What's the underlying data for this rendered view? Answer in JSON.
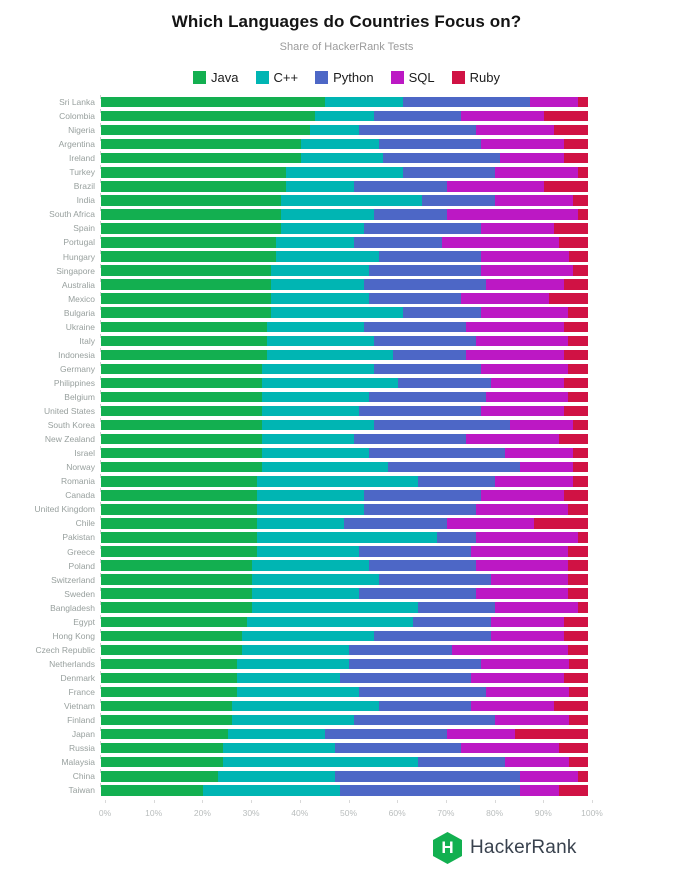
{
  "header": {
    "title": "Which Languages do Countries Focus on?",
    "subtitle": "Share of HackerRank Tests"
  },
  "chart_data": {
    "type": "bar",
    "stacked": true,
    "orientation": "horizontal",
    "title": "Which Languages do Countries Focus on?",
    "subtitle": "Share of HackerRank Tests",
    "xlabel": "",
    "ylabel": "",
    "xlim": [
      0,
      100
    ],
    "grid": false,
    "legend_position": "top",
    "x_ticks": [
      "0%",
      "10%",
      "20%",
      "30%",
      "40%",
      "50%",
      "60%",
      "70%",
      "80%",
      "90%",
      "100%"
    ],
    "unit": "percent",
    "colors": {
      "Java": "#13AF50",
      "C++": "#00B5B3",
      "Python": "#4D67C6",
      "SQL": "#BC18C4",
      "Ruby": "#D01244"
    },
    "categories": [
      "Sri Lanka",
      "Colombia",
      "Nigeria",
      "Argentina",
      "Ireland",
      "Turkey",
      "Brazil",
      "India",
      "South Africa",
      "Spain",
      "Portugal",
      "Hungary",
      "Singapore",
      "Australia",
      "Mexico",
      "Bulgaria",
      "Ukraine",
      "Italy",
      "Indonesia",
      "Germany",
      "Philippines",
      "Belgium",
      "United States",
      "South Korea",
      "New Zealand",
      "Israel",
      "Norway",
      "Romania",
      "Canada",
      "United Kingdom",
      "Chile",
      "Pakistan",
      "Greece",
      "Poland",
      "Switzerland",
      "Sweden",
      "Bangladesh",
      "Egypt",
      "Hong Kong",
      "Czech Republic",
      "Netherlands",
      "Denmark",
      "France",
      "Vietnam",
      "Finland",
      "Japan",
      "Russia",
      "Malaysia",
      "China",
      "Taiwan"
    ],
    "series": [
      {
        "name": "Java",
        "key": "java",
        "values": [
          46,
          44,
          43,
          41,
          41,
          38,
          38,
          37,
          37,
          37,
          36,
          36,
          35,
          35,
          35,
          35,
          34,
          34,
          34,
          33,
          33,
          33,
          33,
          33,
          33,
          33,
          33,
          32,
          32,
          32,
          32,
          32,
          32,
          31,
          31,
          31,
          31,
          30,
          29,
          29,
          28,
          28,
          28,
          27,
          27,
          26,
          25,
          25,
          24,
          21
        ]
      },
      {
        "name": "C++",
        "key": "cpp",
        "values": [
          16,
          12,
          10,
          16,
          17,
          24,
          14,
          29,
          19,
          17,
          16,
          21,
          20,
          19,
          20,
          27,
          20,
          22,
          26,
          23,
          28,
          22,
          20,
          23,
          19,
          22,
          26,
          33,
          22,
          22,
          18,
          37,
          21,
          24,
          26,
          22,
          34,
          34,
          27,
          22,
          23,
          21,
          25,
          30,
          25,
          20,
          23,
          40,
          24,
          28
        ]
      },
      {
        "name": "Python",
        "key": "python",
        "values": [
          26,
          18,
          24,
          21,
          24,
          19,
          19,
          15,
          15,
          24,
          18,
          21,
          23,
          25,
          19,
          16,
          21,
          21,
          15,
          22,
          19,
          24,
          25,
          28,
          23,
          28,
          27,
          16,
          24,
          23,
          21,
          8,
          23,
          22,
          23,
          24,
          16,
          16,
          24,
          21,
          27,
          27,
          26,
          19,
          29,
          25,
          26,
          18,
          38,
          37
        ]
      },
      {
        "name": "SQL",
        "key": "sql",
        "values": [
          10,
          17,
          16,
          17,
          13,
          17,
          20,
          16,
          27,
          15,
          24,
          18,
          19,
          16,
          18,
          18,
          20,
          19,
          20,
          18,
          15,
          17,
          17,
          13,
          19,
          14,
          11,
          16,
          17,
          19,
          18,
          21,
          20,
          19,
          16,
          19,
          17,
          15,
          15,
          24,
          18,
          19,
          17,
          17,
          15,
          14,
          20,
          13,
          12,
          8
        ]
      },
      {
        "name": "Ruby",
        "key": "ruby",
        "values": [
          2,
          9,
          7,
          5,
          5,
          2,
          9,
          3,
          2,
          7,
          6,
          4,
          3,
          5,
          8,
          4,
          5,
          4,
          5,
          4,
          5,
          4,
          5,
          3,
          6,
          3,
          3,
          3,
          5,
          4,
          11,
          2,
          4,
          4,
          4,
          4,
          2,
          5,
          5,
          4,
          4,
          5,
          4,
          7,
          4,
          15,
          6,
          4,
          2,
          6
        ]
      }
    ]
  },
  "footer": {
    "brand": "HackerRank",
    "logo_letter": "H",
    "logo_color": "#12B050",
    "text_color": "#39424E"
  }
}
